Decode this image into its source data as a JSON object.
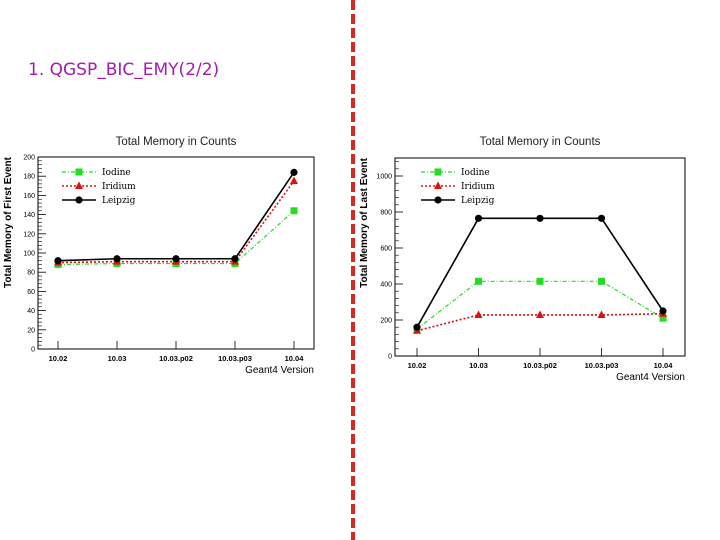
{
  "slide": {
    "title": "1. QGSP_BIC_EMY(2/2)"
  },
  "colors": {
    "iodine": "#22dd22",
    "iridium": "#dd1111",
    "leipzig": "#000000",
    "title": "#a21caf",
    "divider": "#dc2626"
  },
  "chart_data": [
    {
      "type": "line",
      "title": "Total Memory in Counts",
      "xlabel": "Geant4 Version",
      "ylabel": "Total Memory of First Event",
      "categories": [
        "10.02",
        "10.03",
        "10.03.p02",
        "10.03.p03",
        "10.04"
      ],
      "ylim": [
        0,
        200
      ],
      "yticks": [
        0,
        20,
        40,
        60,
        80,
        100,
        120,
        140,
        160,
        180,
        200
      ],
      "ytick_labels": [
        "0",
        "20",
        "40",
        "60",
        "80",
        "100",
        "120",
        "140",
        "160",
        "180",
        "200"
      ],
      "legend_position": "top-left",
      "series": [
        {
          "name": "Iodine",
          "values": [
            88,
            89,
            89,
            89,
            144
          ]
        },
        {
          "name": "Iridium",
          "values": [
            90,
            91,
            91,
            91,
            175
          ]
        },
        {
          "name": "Leipzig",
          "values": [
            92,
            94,
            94,
            94,
            184
          ]
        }
      ]
    },
    {
      "type": "line",
      "title": "Total Memory in Counts",
      "xlabel": "Geant4 Version",
      "ylabel": "Total Memory of Last Event",
      "categories": [
        "10.02",
        "10.03",
        "10.03.p02",
        "10.03.p03",
        "10.04"
      ],
      "ylim": [
        0,
        1100
      ],
      "yticks": [
        0,
        200,
        400,
        600,
        800,
        1000
      ],
      "ytick_labels": [
        "0",
        "200",
        "400",
        "600",
        "800",
        "1000"
      ],
      "legend_position": "top-left",
      "series": [
        {
          "name": "Iodine",
          "values": [
            150,
            415,
            415,
            415,
            210
          ]
        },
        {
          "name": "Iridium",
          "values": [
            140,
            228,
            228,
            228,
            235
          ]
        },
        {
          "name": "Leipzig",
          "values": [
            160,
            765,
            765,
            765,
            250
          ]
        }
      ]
    }
  ]
}
